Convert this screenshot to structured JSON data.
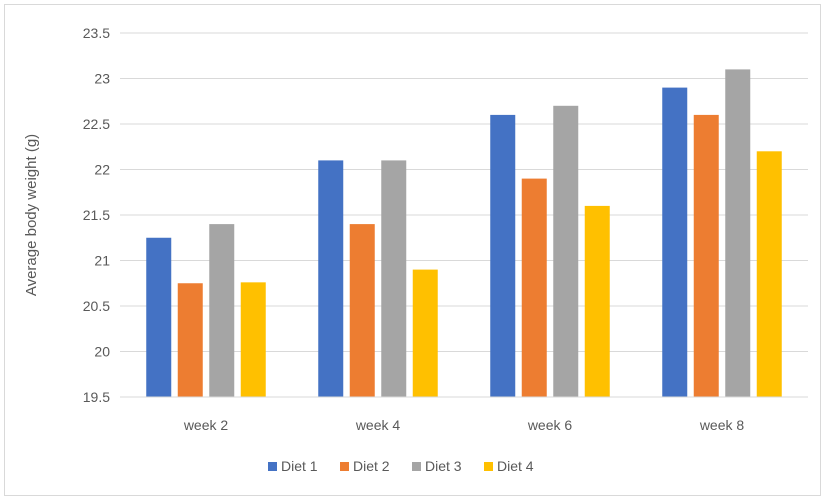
{
  "chart_data": {
    "type": "bar",
    "title": "",
    "xlabel": "",
    "ylabel": "Average body weight  (g)",
    "categories": [
      "week 2",
      "week 4",
      "week 6",
      "week 8"
    ],
    "ylim": [
      19.5,
      23.5
    ],
    "yticks": [
      19.5,
      20,
      20.5,
      21,
      21.5,
      22,
      22.5,
      23,
      23.5
    ],
    "ytick_labels": [
      "19.5",
      "20",
      "20.5",
      "21",
      "21.5",
      "22",
      "22.5",
      "23",
      "23.5"
    ],
    "grid": true,
    "legend_position": "bottom",
    "series": [
      {
        "name": "Diet 1",
        "color": "#4472c4",
        "values": [
          21.25,
          22.1,
          22.6,
          22.9
        ]
      },
      {
        "name": "Diet 2",
        "color": "#ed7d31",
        "values": [
          20.75,
          21.4,
          21.9,
          22.6
        ]
      },
      {
        "name": "Diet 3",
        "color": "#a5a5a5",
        "values": [
          21.4,
          22.1,
          22.7,
          23.1
        ]
      },
      {
        "name": "Diet 4",
        "color": "#ffc000",
        "values": [
          20.76,
          20.9,
          21.6,
          22.2
        ]
      }
    ]
  }
}
